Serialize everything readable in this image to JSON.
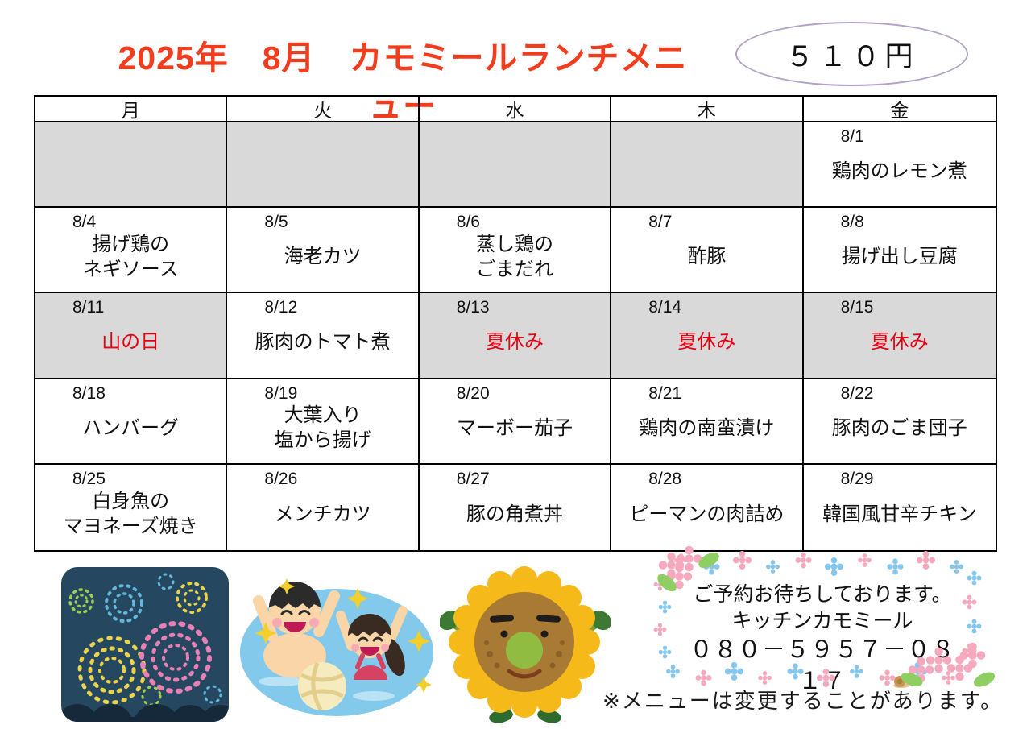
{
  "header": {
    "title": "2025年　8月　カモミールランチメニュー",
    "price": "５１０円",
    "title_color": "#f23c1e",
    "oval_border_color": "#b3a2c7"
  },
  "calendar": {
    "weekdays": [
      "月",
      "火",
      "水",
      "木",
      "金"
    ],
    "gray_color": "#d9d9d9",
    "holiday_color": "#e60012",
    "rows": [
      [
        {
          "date": "",
          "menu": [],
          "gray": true
        },
        {
          "date": "",
          "menu": [],
          "gray": true
        },
        {
          "date": "",
          "menu": [],
          "gray": true
        },
        {
          "date": "",
          "menu": [],
          "gray": true
        },
        {
          "date": "8/1",
          "menu": [
            "鶏肉のレモン煮"
          ],
          "gray": false
        }
      ],
      [
        {
          "date": "8/4",
          "menu": [
            "揚げ鶏の",
            "ネギソース"
          ],
          "gray": false
        },
        {
          "date": "8/5",
          "menu": [
            "海老カツ"
          ],
          "gray": false
        },
        {
          "date": "8/6",
          "menu": [
            "蒸し鶏の",
            "ごまだれ"
          ],
          "gray": false
        },
        {
          "date": "8/7",
          "menu": [
            "酢豚"
          ],
          "gray": false
        },
        {
          "date": "8/8",
          "menu": [
            "揚げ出し豆腐"
          ],
          "gray": false
        }
      ],
      [
        {
          "date": "8/11",
          "menu": [
            "山の日"
          ],
          "gray": true,
          "red": true
        },
        {
          "date": "8/12",
          "menu": [
            "豚肉のトマト煮"
          ],
          "gray": false
        },
        {
          "date": "8/13",
          "menu": [
            "夏休み"
          ],
          "gray": true,
          "red": true
        },
        {
          "date": "8/14",
          "menu": [
            "夏休み"
          ],
          "gray": true,
          "red": true
        },
        {
          "date": "8/15",
          "menu": [
            "夏休み"
          ],
          "gray": true,
          "red": true
        }
      ],
      [
        {
          "date": "8/18",
          "menu": [
            "ハンバーグ"
          ],
          "gray": false
        },
        {
          "date": "8/19",
          "menu": [
            "大葉入り",
            "塩から揚げ"
          ],
          "gray": false
        },
        {
          "date": "8/20",
          "menu": [
            "マーボー茄子"
          ],
          "gray": false
        },
        {
          "date": "8/21",
          "menu": [
            "鶏肉の南蛮漬け"
          ],
          "gray": false
        },
        {
          "date": "8/22",
          "menu": [
            "豚肉のごま団子"
          ],
          "gray": false
        }
      ],
      [
        {
          "date": "8/25",
          "menu": [
            "白身魚の",
            "マヨネーズ焼き"
          ],
          "gray": false
        },
        {
          "date": "8/26",
          "menu": [
            "メンチカツ"
          ],
          "gray": false
        },
        {
          "date": "8/27",
          "menu": [
            "豚の角煮丼"
          ],
          "gray": false
        },
        {
          "date": "8/28",
          "menu": [
            "ピーマンの肉詰め"
          ],
          "gray": false
        },
        {
          "date": "8/29",
          "menu": [
            "韓国風甘辛チキン"
          ],
          "gray": false
        }
      ]
    ]
  },
  "footer": {
    "reservation": {
      "line1": "ご予約お待ちしております。",
      "line2": "キッチンカモミール",
      "line3": "０８０－５９５７－０８１７"
    },
    "note": "※メニューは変更することがあります。"
  }
}
